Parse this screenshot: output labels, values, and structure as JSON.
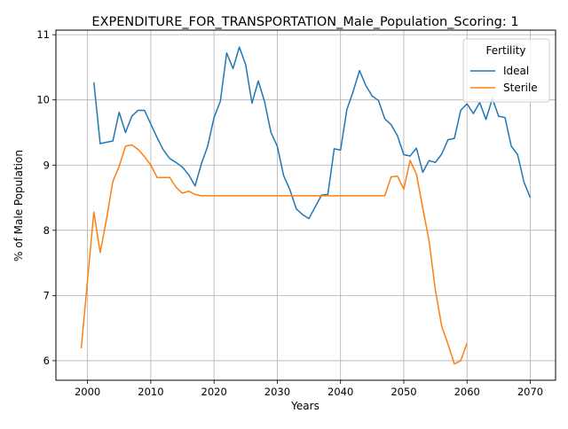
{
  "chart_data": {
    "type": "line",
    "title": "EXPENDITURE_FOR_TRANSPORTATION_Male_Population_Scoring: 1",
    "xlabel": "Years",
    "ylabel": "% of Male Population",
    "xlim": [
      1995,
      2074
    ],
    "ylim": [
      5.7,
      11.07
    ],
    "xticks": [
      2000,
      2010,
      2020,
      2030,
      2040,
      2050,
      2060,
      2070
    ],
    "yticks": [
      6,
      7,
      8,
      9,
      10,
      11
    ],
    "grid": true,
    "legend": {
      "title": "Fertility",
      "position": "top-right"
    },
    "series": [
      {
        "name": "Ideal",
        "color": "#1f77b4",
        "x": [
          2001,
          2002,
          2003,
          2004,
          2005,
          2006,
          2007,
          2008,
          2009,
          2010,
          2011,
          2012,
          2013,
          2014,
          2015,
          2016,
          2017,
          2018,
          2019,
          2020,
          2021,
          2022,
          2023,
          2024,
          2025,
          2026,
          2027,
          2028,
          2029,
          2030,
          2031,
          2032,
          2033,
          2034,
          2035,
          2036,
          2037,
          2038,
          2039,
          2040,
          2041,
          2042,
          2043,
          2044,
          2045,
          2046,
          2047,
          2048,
          2049,
          2050,
          2051,
          2052,
          2053,
          2054,
          2055,
          2056,
          2057,
          2058,
          2059,
          2060,
          2061,
          2062,
          2063,
          2064,
          2065,
          2066,
          2067,
          2068,
          2069,
          2070
        ],
        "values": [
          10.27,
          9.33,
          9.35,
          9.37,
          9.81,
          9.5,
          9.75,
          9.84,
          9.84,
          9.63,
          9.42,
          9.23,
          9.1,
          9.04,
          8.97,
          8.85,
          8.68,
          9.02,
          9.29,
          9.73,
          9.98,
          10.72,
          10.48,
          10.81,
          10.54,
          9.95,
          10.29,
          9.97,
          9.5,
          9.29,
          8.84,
          8.62,
          8.33,
          8.24,
          8.18,
          8.36,
          8.54,
          8.55,
          9.25,
          9.23,
          9.85,
          10.13,
          10.45,
          10.22,
          10.06,
          9.99,
          9.71,
          9.62,
          9.45,
          9.16,
          9.14,
          9.26,
          8.89,
          9.07,
          9.04,
          9.17,
          9.39,
          9.41,
          9.84,
          9.94,
          9.79,
          9.96,
          9.7,
          10.02,
          9.75,
          9.73,
          9.29,
          9.16,
          8.74,
          8.5
        ]
      },
      {
        "name": "Sterile",
        "color": "#ff7f0e",
        "x": [
          1999,
          2000,
          2001,
          2002,
          2003,
          2004,
          2005,
          2006,
          2007,
          2008,
          2009,
          2010,
          2011,
          2012,
          2013,
          2014,
          2015,
          2016,
          2017,
          2018,
          2019,
          2020,
          2021,
          2022,
          2023,
          2024,
          2025,
          2026,
          2027,
          2028,
          2029,
          2030,
          2031,
          2032,
          2033,
          2034,
          2035,
          2036,
          2037,
          2038,
          2039,
          2040,
          2041,
          2042,
          2043,
          2044,
          2045,
          2046,
          2047,
          2048,
          2049,
          2050,
          2051,
          2052,
          2053,
          2054,
          2055,
          2056,
          2057,
          2058,
          2059,
          2060
        ],
        "values": [
          6.19,
          7.23,
          8.28,
          7.66,
          8.17,
          8.75,
          8.98,
          9.29,
          9.31,
          9.24,
          9.13,
          9.0,
          8.81,
          8.81,
          8.81,
          8.66,
          8.57,
          8.6,
          8.55,
          8.53,
          8.53,
          8.53,
          8.53,
          8.53,
          8.53,
          8.53,
          8.53,
          8.53,
          8.53,
          8.53,
          8.53,
          8.53,
          8.53,
          8.53,
          8.53,
          8.53,
          8.53,
          8.53,
          8.53,
          8.53,
          8.53,
          8.53,
          8.53,
          8.53,
          8.53,
          8.53,
          8.53,
          8.53,
          8.53,
          8.82,
          8.83,
          8.63,
          9.07,
          8.86,
          8.34,
          7.84,
          7.08,
          6.53,
          6.25,
          5.95,
          6.0,
          6.27
        ]
      }
    ]
  }
}
